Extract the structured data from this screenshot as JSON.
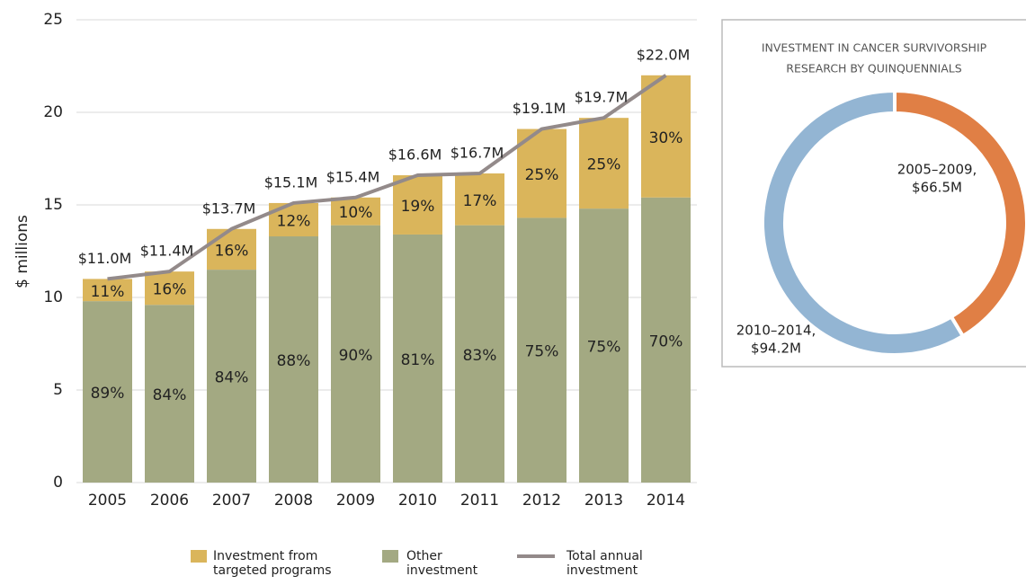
{
  "chart_data": [
    {
      "type": "bar",
      "ylabel": "$ millions",
      "categories": [
        "2005",
        "2006",
        "2007",
        "2008",
        "2009",
        "2010",
        "2011",
        "2012",
        "2013",
        "2014"
      ],
      "ylim": [
        0,
        25
      ],
      "yticks": [
        0,
        5,
        10,
        15,
        20,
        25
      ],
      "grid": true,
      "series": [
        {
          "name": "Other investment",
          "color": "#a3a982",
          "values": [
            9.8,
            9.6,
            11.5,
            13.3,
            13.9,
            13.4,
            13.9,
            14.3,
            14.8,
            15.4
          ],
          "share_labels": [
            "89%",
            "84%",
            "84%",
            "88%",
            "90%",
            "81%",
            "83%",
            "75%",
            "75%",
            "70%"
          ]
        },
        {
          "name": "Investment from targeted programs",
          "color": "#dab55b",
          "values": [
            1.2,
            1.8,
            2.2,
            1.8,
            1.5,
            3.2,
            2.8,
            4.8,
            4.9,
            6.6
          ],
          "share_labels": [
            "11%",
            "16%",
            "16%",
            "12%",
            "10%",
            "19%",
            "17%",
            "25%",
            "25%",
            "30%"
          ]
        },
        {
          "name": "Total annual investment",
          "type": "line",
          "color": "#938a8a",
          "values": [
            11.0,
            11.4,
            13.7,
            15.1,
            15.4,
            16.6,
            16.7,
            19.1,
            19.7,
            22.0
          ],
          "value_labels": [
            "$11.0M",
            "$11.4M",
            "$13.7M",
            "$15.1M",
            "$15.4M",
            "$16.6M",
            "$16.7M",
            "$19.1M",
            "$19.7M",
            "$22.0M"
          ]
        }
      ]
    },
    {
      "type": "pie",
      "title": [
        "INVESTMENT IN CANCER SURVIVORSHIP",
        "RESEARCH BY QUINQUENNIALS"
      ],
      "categories": [
        "2005–2009,",
        "2010–2014,"
      ],
      "values": [
        66.5,
        94.2
      ],
      "value_labels": [
        "$66.5M",
        "$94.2M"
      ],
      "colors": [
        "#e07f45",
        "#93b5d3"
      ]
    }
  ]
}
